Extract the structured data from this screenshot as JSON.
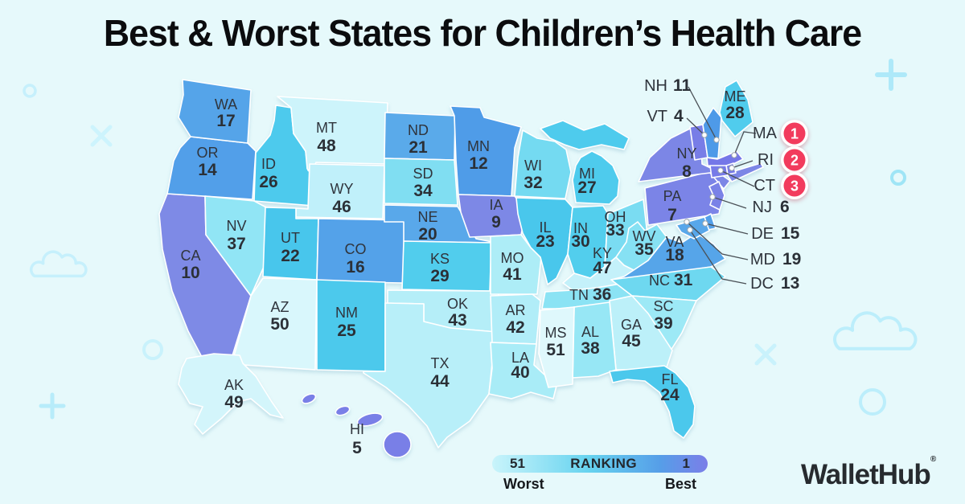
{
  "title": "Best & Worst States for Children’s Health Care",
  "legend": {
    "worst_value": "51",
    "title": "RANKING",
    "best_value": "1",
    "worst_label": "Worst",
    "best_label": "Best"
  },
  "brand": {
    "name": "WalletHub",
    "registered": "®"
  },
  "colors": {
    "background": "#e6f9fb",
    "title_text": "#0b0c0e",
    "label_text": "#2f343c",
    "state_border": "#ffffff",
    "badge_red": "#f23b5d",
    "badge_ring": "#ffffff",
    "badge_text": "#ffffff",
    "leader_line": "#4a5056",
    "leader_dot_fill": "#ffffff",
    "leader_dot_stroke": "#9aa6ad",
    "scale_bins": [
      {
        "from_rank": 1,
        "to_rank": 10,
        "from_color": "#7577e8",
        "to_color": "#7e8ae6"
      },
      {
        "from_rank": 11,
        "to_rank": 21,
        "from_color": "#4e9ae8",
        "to_color": "#5aaaea"
      },
      {
        "from_rank": 22,
        "to_rank": 30,
        "from_color": "#48c6ec",
        "to_color": "#52ceed"
      },
      {
        "from_rank": 31,
        "to_rank": 39,
        "from_color": "#6ed8f0",
        "to_color": "#9de9f6"
      },
      {
        "from_rank": 40,
        "to_rank": 47,
        "from_color": "#a9ecf7",
        "to_color": "#c4f1fa"
      },
      {
        "from_rank": 48,
        "to_rank": 51,
        "from_color": "#cdf4fb",
        "to_color": "#dff8fc"
      }
    ],
    "legend_gradient": [
      "#c9f4fb",
      "#66d3ef",
      "#569ee8",
      "#7b7ee8"
    ]
  },
  "decorations": [
    {
      "icon": "circle-icon",
      "color": "#c6f0fc"
    },
    {
      "icon": "cross-icon",
      "color": "#cdf4fd"
    },
    {
      "icon": "plus-icon",
      "color": "#aee9f9"
    },
    {
      "icon": "circle-icon",
      "color": "#9fe5f6"
    },
    {
      "icon": "cross-icon",
      "color": "#c9f2fc"
    },
    {
      "icon": "cloud-icon",
      "color": "#bceefb"
    },
    {
      "icon": "circle-icon",
      "color": "#bceefb"
    },
    {
      "icon": "cloud-icon",
      "color": "#c6f0fc"
    },
    {
      "icon": "circle-icon",
      "color": "#c9f2fc"
    },
    {
      "icon": "plus-icon",
      "color": "#b7ecfa"
    }
  ],
  "chart_data": {
    "type": "choropleth",
    "title": "Best & Worst States for Children’s Health Care",
    "value_label": "Ranking",
    "scale": {
      "best": 1,
      "worst": 51,
      "best_label": "Best",
      "worst_label": "Worst"
    },
    "rankings": [
      {
        "state": "MA",
        "rank": 1
      },
      {
        "state": "RI",
        "rank": 2
      },
      {
        "state": "CT",
        "rank": 3
      },
      {
        "state": "VT",
        "rank": 4
      },
      {
        "state": "HI",
        "rank": 5
      },
      {
        "state": "NJ",
        "rank": 6
      },
      {
        "state": "PA",
        "rank": 7
      },
      {
        "state": "NY",
        "rank": 8
      },
      {
        "state": "IA",
        "rank": 9
      },
      {
        "state": "CA",
        "rank": 10
      },
      {
        "state": "NH",
        "rank": 11
      },
      {
        "state": "MN",
        "rank": 12
      },
      {
        "state": "DC",
        "rank": 13
      },
      {
        "state": "OR",
        "rank": 14
      },
      {
        "state": "DE",
        "rank": 15
      },
      {
        "state": "CO",
        "rank": 16
      },
      {
        "state": "WA",
        "rank": 17
      },
      {
        "state": "VA",
        "rank": 18
      },
      {
        "state": "MD",
        "rank": 19
      },
      {
        "state": "NE",
        "rank": 20
      },
      {
        "state": "ND",
        "rank": 21
      },
      {
        "state": "UT",
        "rank": 22
      },
      {
        "state": "IL",
        "rank": 23
      },
      {
        "state": "FL",
        "rank": 24
      },
      {
        "state": "NM",
        "rank": 25
      },
      {
        "state": "ID",
        "rank": 26
      },
      {
        "state": "MI",
        "rank": 27
      },
      {
        "state": "ME",
        "rank": 28
      },
      {
        "state": "KS",
        "rank": 29
      },
      {
        "state": "IN",
        "rank": 30
      },
      {
        "state": "NC",
        "rank": 31
      },
      {
        "state": "WI",
        "rank": 32
      },
      {
        "state": "OH",
        "rank": 33
      },
      {
        "state": "SD",
        "rank": 34
      },
      {
        "state": "WV",
        "rank": 35
      },
      {
        "state": "TN",
        "rank": 36
      },
      {
        "state": "NV",
        "rank": 37
      },
      {
        "state": "AL",
        "rank": 38
      },
      {
        "state": "SC",
        "rank": 39
      },
      {
        "state": "LA",
        "rank": 40
      },
      {
        "state": "MO",
        "rank": 41
      },
      {
        "state": "AR",
        "rank": 42
      },
      {
        "state": "OK",
        "rank": 43
      },
      {
        "state": "TX",
        "rank": 44
      },
      {
        "state": "GA",
        "rank": 45
      },
      {
        "state": "WY",
        "rank": 46
      },
      {
        "state": "KY",
        "rank": 47
      },
      {
        "state": "MT",
        "rank": 48
      },
      {
        "state": "AK",
        "rank": 49
      },
      {
        "state": "AZ",
        "rank": 50
      },
      {
        "state": "MS",
        "rank": 51
      }
    ]
  }
}
